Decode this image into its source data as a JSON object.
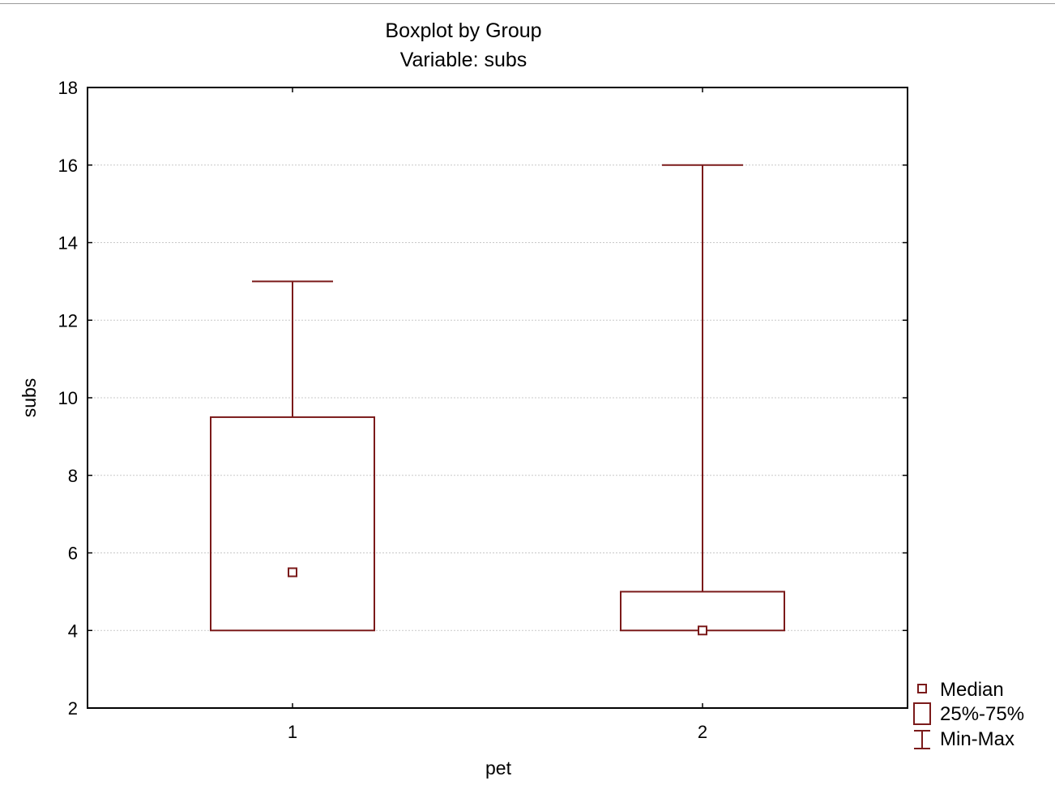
{
  "chart_data": {
    "type": "boxplot",
    "title": "Boxplot by Group",
    "subtitle": "Variable: subs",
    "xlabel": "pet",
    "ylabel": "subs",
    "categories": [
      "1",
      "2"
    ],
    "boxes": [
      {
        "category": "1",
        "min": 4,
        "q1": 4,
        "median": 5.5,
        "q3": 9.5,
        "max": 13
      },
      {
        "category": "2",
        "min": 4,
        "q1": 4,
        "median": 4,
        "q3": 5,
        "max": 16
      }
    ],
    "ylim": [
      2,
      18
    ],
    "yticks": [
      2,
      4,
      6,
      8,
      10,
      12,
      14,
      16,
      18
    ],
    "grid": true,
    "legend_position": "bottom-right",
    "legend": [
      {
        "symbol": "median-marker",
        "label": "Median"
      },
      {
        "symbol": "box",
        "label": "25%-75%"
      },
      {
        "symbol": "whisker",
        "label": "Min-Max"
      }
    ],
    "colors": {
      "series": "#7B1A1A",
      "grid": "#C8C8C8",
      "axis": "#000000"
    }
  }
}
